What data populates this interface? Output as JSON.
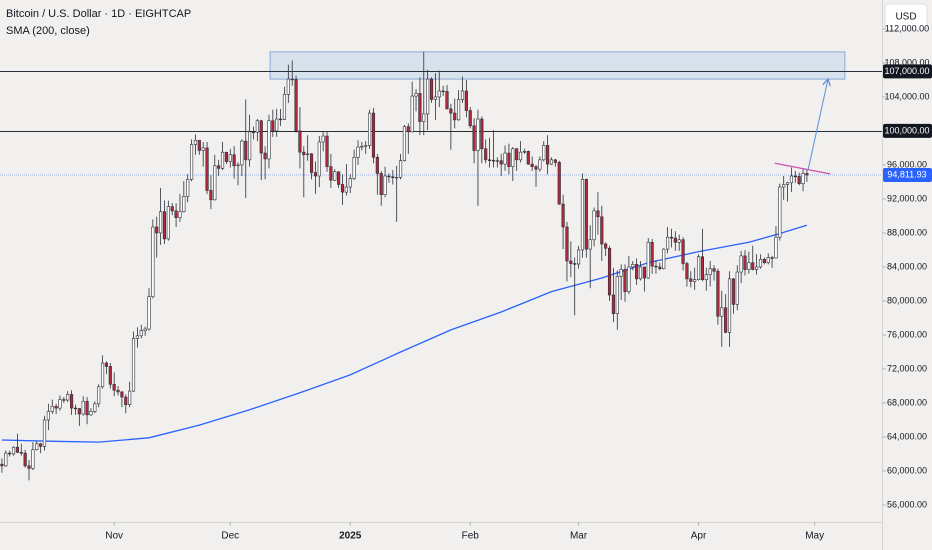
{
  "chart_data": {
    "type": "candlestick",
    "title": "Bitcoin / U.S. Dollar · 1D · EIGHTCAP",
    "currency": "USD",
    "up_color": "#ffffff",
    "down_color": "#b2283a",
    "xlim": [
      -0.5,
      227.4
    ],
    "xticks": [
      {
        "value": 29,
        "label": "Nov"
      },
      {
        "value": 59,
        "label": "Dec"
      },
      {
        "value": 90,
        "label": "2025"
      },
      {
        "value": 121,
        "label": "Feb"
      },
      {
        "value": 149,
        "label": "Mar"
      },
      {
        "value": 180,
        "label": "Apr"
      },
      {
        "value": 210,
        "label": "May"
      }
    ],
    "ylim": [
      54000,
      115400
    ],
    "yticks": [
      {
        "value": 56000,
        "label": "56,000.00"
      },
      {
        "value": 60000,
        "label": "60,000.00"
      },
      {
        "value": 64000,
        "label": "64,000.00"
      },
      {
        "value": 68000,
        "label": "68,000.00"
      },
      {
        "value": 72000,
        "label": "72,000.00"
      },
      {
        "value": 76000,
        "label": "76,000.00"
      },
      {
        "value": 80000,
        "label": "80,000.00"
      },
      {
        "value": 84000,
        "label": "84,000.00"
      },
      {
        "value": 88000,
        "label": "88,000.00"
      },
      {
        "value": 92000,
        "label": "92,000.00"
      },
      {
        "value": 96000,
        "label": "96,000.00"
      },
      {
        "value": 104000,
        "label": "104,000.00"
      },
      {
        "value": 108000,
        "label": "108,000.00"
      },
      {
        "value": 112000,
        "label": "112,000.00"
      }
    ],
    "candles": [
      [
        60800,
        61500,
        59800,
        60600
      ],
      [
        60600,
        62400,
        60500,
        62100
      ],
      [
        62100,
        62400,
        61700,
        62000
      ],
      [
        62000,
        62900,
        61800,
        62800
      ],
      [
        62800,
        64400,
        62100,
        62200
      ],
      [
        62200,
        63200,
        61800,
        62100
      ],
      [
        62100,
        62500,
        60400,
        60600
      ],
      [
        60600,
        61300,
        58900,
        60300
      ],
      [
        60300,
        63400,
        60100,
        62500
      ],
      [
        62500,
        63500,
        62400,
        63200
      ],
      [
        63200,
        63300,
        62100,
        62900
      ],
      [
        62900,
        66500,
        62400,
        66000
      ],
      [
        66000,
        67900,
        64800,
        67000
      ],
      [
        67000,
        68400,
        66700,
        67600
      ],
      [
        67600,
        67900,
        66700,
        67400
      ],
      [
        67400,
        68900,
        67100,
        68400
      ],
      [
        68400,
        68700,
        68000,
        68350
      ],
      [
        68350,
        69400,
        68100,
        69000
      ],
      [
        69000,
        69500,
        66600,
        67400
      ],
      [
        67400,
        67800,
        66600,
        67350
      ],
      [
        67350,
        67400,
        65300,
        66700
      ],
      [
        66700,
        68800,
        66500,
        68200
      ],
      [
        68200,
        68700,
        65500,
        66600
      ],
      [
        66600,
        67400,
        66500,
        67000
      ],
      [
        67000,
        68200,
        66800,
        67900
      ],
      [
        67900,
        70200,
        67500,
        69900
      ],
      [
        69900,
        73600,
        69700,
        72700
      ],
      [
        72700,
        72900,
        71400,
        72300
      ],
      [
        72300,
        72700,
        69700,
        70200
      ],
      [
        70200,
        71600,
        68800,
        69500
      ],
      [
        69500,
        70000,
        68900,
        69300
      ],
      [
        69300,
        69400,
        67500,
        68700
      ],
      [
        68700,
        69000,
        66800,
        67800
      ],
      [
        67800,
        70500,
        67500,
        69400
      ],
      [
        69400,
        76400,
        69300,
        75600
      ],
      [
        75600,
        76900,
        74500,
        75900
      ],
      [
        75900,
        77200,
        75600,
        76500
      ],
      [
        76500,
        77000,
        75900,
        76700
      ],
      [
        76700,
        81500,
        76500,
        80500
      ],
      [
        80500,
        89600,
        80300,
        88700
      ],
      [
        88700,
        89900,
        85100,
        88000
      ],
      [
        88000,
        93300,
        86600,
        90500
      ],
      [
        90500,
        91800,
        86700,
        87300
      ],
      [
        87300,
        91800,
        87100,
        91100
      ],
      [
        91100,
        91500,
        90100,
        90600
      ],
      [
        90600,
        91500,
        88700,
        89800
      ],
      [
        89800,
        92600,
        89300,
        90500
      ],
      [
        90500,
        94100,
        90400,
        92300
      ],
      [
        92300,
        94900,
        91600,
        94300
      ],
      [
        94300,
        99000,
        94100,
        98400
      ],
      [
        98400,
        99600,
        97200,
        98900
      ],
      [
        98900,
        98800,
        97200,
        97700
      ],
      [
        97700,
        98700,
        95800,
        98000
      ],
      [
        98000,
        98700,
        92600,
        93000
      ],
      [
        93000,
        94800,
        90800,
        91900
      ],
      [
        91900,
        97200,
        91800,
        95900
      ],
      [
        95900,
        96600,
        94700,
        95600
      ],
      [
        95600,
        98700,
        95400,
        97500
      ],
      [
        97500,
        97500,
        96100,
        96400
      ],
      [
        96400,
        97900,
        95700,
        97200
      ],
      [
        97200,
        98200,
        94400,
        95900
      ],
      [
        95900,
        96300,
        93600,
        96000
      ],
      [
        96000,
        99000,
        94700,
        98800
      ],
      [
        98800,
        103700,
        92100,
        96600
      ],
      [
        96600,
        101900,
        95800,
        99900
      ],
      [
        99900,
        100500,
        99000,
        99850
      ],
      [
        99850,
        101400,
        98800,
        101200
      ],
      [
        101200,
        101300,
        94200,
        97400
      ],
      [
        97400,
        98200,
        94300,
        96700
      ],
      [
        96700,
        101900,
        95600,
        101200
      ],
      [
        101200,
        102500,
        99300,
        100000
      ],
      [
        100000,
        102600,
        99300,
        101400
      ],
      [
        101400,
        102600,
        100600,
        101350
      ],
      [
        101350,
        105200,
        101300,
        104300
      ],
      [
        104300,
        107800,
        103300,
        106100
      ],
      [
        106100,
        108300,
        105300,
        106050
      ],
      [
        106050,
        106500,
        99800,
        100000
      ],
      [
        100000,
        102800,
        95600,
        97500
      ],
      [
        97500,
        98200,
        92200,
        97200
      ],
      [
        97200,
        99500,
        96500,
        97300
      ],
      [
        97300,
        97400,
        94300,
        95100
      ],
      [
        95100,
        96400,
        92600,
        94700
      ],
      [
        94700,
        99400,
        93400,
        98700
      ],
      [
        98700,
        99900,
        97600,
        99400
      ],
      [
        99400,
        99900,
        95200,
        95800
      ],
      [
        95800,
        97300,
        93300,
        94200
      ],
      [
        94200,
        95500,
        94100,
        95200
      ],
      [
        95200,
        95200,
        93300,
        93700
      ],
      [
        93700,
        94900,
        91300,
        92800
      ],
      [
        92800,
        96100,
        92400,
        93400
      ],
      [
        93400,
        94900,
        92700,
        94400
      ],
      [
        94400,
        97800,
        94200,
        96900
      ],
      [
        96900,
        98900,
        96000,
        98100
      ],
      [
        98100,
        98700,
        97700,
        98200
      ],
      [
        98200,
        98800,
        97300,
        98300
      ],
      [
        98300,
        102500,
        97900,
        102100
      ],
      [
        102100,
        102700,
        96200,
        96900
      ],
      [
        96900,
        97300,
        92500,
        95000
      ],
      [
        95000,
        95300,
        91200,
        92500
      ],
      [
        92500,
        95800,
        92200,
        94700
      ],
      [
        94700,
        95000,
        93900,
        94600
      ],
      [
        94600,
        95400,
        93700,
        94500
      ],
      [
        94500,
        95900,
        89300,
        94550
      ],
      [
        94550,
        97300,
        94300,
        96500
      ],
      [
        96500,
        100700,
        96400,
        100500
      ],
      [
        100500,
        100900,
        97300,
        99900
      ],
      [
        99900,
        105800,
        99800,
        104100
      ],
      [
        104100,
        104900,
        102300,
        104400
      ],
      [
        104400,
        106300,
        99500,
        101100
      ],
      [
        101100,
        109300,
        99500,
        102000
      ],
      [
        102000,
        107200,
        100100,
        106100
      ],
      [
        106100,
        106300,
        103300,
        103700
      ],
      [
        103700,
        106800,
        101300,
        104000
      ],
      [
        104000,
        107100,
        102800,
        104700
      ],
      [
        104700,
        105300,
        104100,
        104650
      ],
      [
        104650,
        105400,
        102500,
        102600
      ],
      [
        102600,
        103200,
        97800,
        102100
      ],
      [
        102100,
        103800,
        100300,
        101300
      ],
      [
        101300,
        104800,
        101200,
        103700
      ],
      [
        103700,
        106400,
        103300,
        104700
      ],
      [
        104700,
        106000,
        101600,
        102400
      ],
      [
        102400,
        102800,
        100300,
        100600
      ],
      [
        100600,
        101500,
        96200,
        97700
      ],
      [
        97700,
        102500,
        91200,
        101400
      ],
      [
        101400,
        101700,
        96200,
        97900
      ],
      [
        97900,
        99000,
        96200,
        96600
      ],
      [
        96600,
        99200,
        95700,
        96550
      ],
      [
        96550,
        100100,
        95700,
        96450
      ],
      [
        96450,
        96900,
        95700,
        96500
      ],
      [
        96500,
        97300,
        94700,
        96100
      ],
      [
        96100,
        98300,
        95300,
        97400
      ],
      [
        97400,
        98500,
        94900,
        95800
      ],
      [
        95800,
        98100,
        94100,
        97900
      ],
      [
        97900,
        98000,
        95300,
        96600
      ],
      [
        96600,
        98800,
        96300,
        97500
      ],
      [
        97500,
        97900,
        97300,
        97600
      ],
      [
        97600,
        97700,
        96000,
        96100
      ],
      [
        96100,
        97000,
        95300,
        95800
      ],
      [
        95800,
        96000,
        93400,
        95500
      ],
      [
        95500,
        97000,
        95200,
        96600
      ],
      [
        96600,
        98800,
        96400,
        98300
      ],
      [
        98300,
        99500,
        94900,
        96100
      ],
      [
        96100,
        96900,
        96000,
        96600
      ],
      [
        96600,
        96700,
        95800,
        96300
      ],
      [
        96300,
        96500,
        91300,
        91400
      ],
      [
        91400,
        92500,
        86100,
        88700
      ],
      [
        88700,
        89300,
        82300,
        84700
      ],
      [
        84700,
        87000,
        82800,
        84400
      ],
      [
        84400,
        85100,
        78300,
        84350
      ],
      [
        84350,
        86500,
        83800,
        86000
      ],
      [
        86000,
        95000,
        85100,
        94300
      ],
      [
        94300,
        94400,
        85100,
        86100
      ],
      [
        86100,
        88900,
        81500,
        87200
      ],
      [
        87200,
        91000,
        86400,
        90600
      ],
      [
        90600,
        92800,
        87800,
        89900
      ],
      [
        89900,
        91200,
        84700,
        86700
      ],
      [
        86700,
        86900,
        85300,
        86200
      ],
      [
        86200,
        86500,
        80000,
        80700
      ],
      [
        80700,
        83900,
        77500,
        78500
      ],
      [
        78500,
        83600,
        76600,
        82900
      ],
      [
        82900,
        84300,
        80100,
        83700
      ],
      [
        83700,
        84300,
        79900,
        81100
      ],
      [
        81100,
        85300,
        80800,
        84000
      ],
      [
        84000,
        84700,
        83600,
        84300
      ],
      [
        84300,
        85000,
        81900,
        82600
      ],
      [
        82600,
        84700,
        82400,
        84000
      ],
      [
        84000,
        84000,
        81100,
        82700
      ],
      [
        82700,
        87400,
        82600,
        86900
      ],
      [
        86900,
        87300,
        83200,
        84100
      ],
      [
        84100,
        84800,
        83200,
        84000
      ],
      [
        84000,
        84500,
        83600,
        83800
      ],
      [
        83800,
        86200,
        83700,
        86100
      ],
      [
        86100,
        88700,
        85600,
        87500
      ],
      [
        87500,
        88500,
        86300,
        87400
      ],
      [
        87400,
        88200,
        85900,
        86900
      ],
      [
        86900,
        87800,
        85900,
        87200
      ],
      [
        87200,
        87500,
        83600,
        84400
      ],
      [
        84400,
        84600,
        81700,
        82600
      ],
      [
        82600,
        83500,
        81600,
        82300
      ],
      [
        82300,
        83900,
        81300,
        82500
      ],
      [
        82500,
        85500,
        82400,
        85200
      ],
      [
        85200,
        88500,
        82300,
        82500
      ],
      [
        82500,
        83900,
        81200,
        83100
      ],
      [
        83100,
        84700,
        81700,
        83800
      ],
      [
        83800,
        84200,
        82400,
        83500
      ],
      [
        83500,
        83800,
        77200,
        78200
      ],
      [
        78200,
        81200,
        74600,
        79200
      ],
      [
        79200,
        80800,
        76200,
        76300
      ],
      [
        76300,
        83500,
        74600,
        82600
      ],
      [
        82600,
        82700,
        78500,
        79600
      ],
      [
        79600,
        84200,
        78900,
        83400
      ],
      [
        83400,
        85900,
        82100,
        85300
      ],
      [
        85300,
        86000,
        83000,
        83700
      ],
      [
        83700,
        85800,
        83200,
        84500
      ],
      [
        84500,
        86500,
        83600,
        83700
      ],
      [
        83700,
        85500,
        83100,
        84000
      ],
      [
        84000,
        85500,
        83800,
        84900
      ],
      [
        84900,
        85100,
        84300,
        84500
      ],
      [
        84500,
        85600,
        84300,
        85100
      ],
      [
        85100,
        85300,
        83900,
        85050
      ],
      [
        85050,
        88800,
        85000,
        87500
      ],
      [
        87500,
        93800,
        87100,
        93400
      ],
      [
        93400,
        94700,
        91900,
        93700
      ],
      [
        93700,
        94000,
        91700,
        93900
      ],
      [
        93900,
        95700,
        92800,
        94700
      ],
      [
        94700,
        95300,
        93900,
        94650
      ],
      [
        94650,
        95100,
        93600,
        93800
      ],
      [
        93800,
        95600,
        92900,
        95000
      ],
      [
        95000,
        95500,
        94000,
        94811.93
      ]
    ],
    "sma": {
      "name": "SMA (200, close)",
      "color": "#2962ff",
      "x": [
        0,
        12,
        25,
        38,
        51,
        64,
        77,
        90,
        103,
        116,
        129,
        142,
        155,
        167,
        180,
        193,
        200,
        208
      ],
      "values": [
        63650,
        63500,
        63400,
        63900,
        65400,
        67200,
        69200,
        71300,
        74000,
        76600,
        78700,
        81100,
        82700,
        84500,
        85800,
        86900,
        87800,
        88900
      ]
    },
    "levels": [
      {
        "value": 107000,
        "label": "107,000.00"
      },
      {
        "value": 100000,
        "label": "100,000.00"
      }
    ],
    "last_price": {
      "value": 94811.93,
      "label": "94,811.93"
    },
    "zone": {
      "xlim": [
        69.3,
        217.8
      ],
      "ylim": [
        106100,
        109300
      ]
    },
    "trendline": {
      "color": "#d14fb0",
      "x": [
        199.7,
        214
      ],
      "values": [
        96200,
        94950
      ]
    },
    "arrow": {
      "color": "#5b8fd8",
      "x": [
        208.3,
        213.4
      ],
      "values": [
        95400,
        106000
      ]
    }
  }
}
